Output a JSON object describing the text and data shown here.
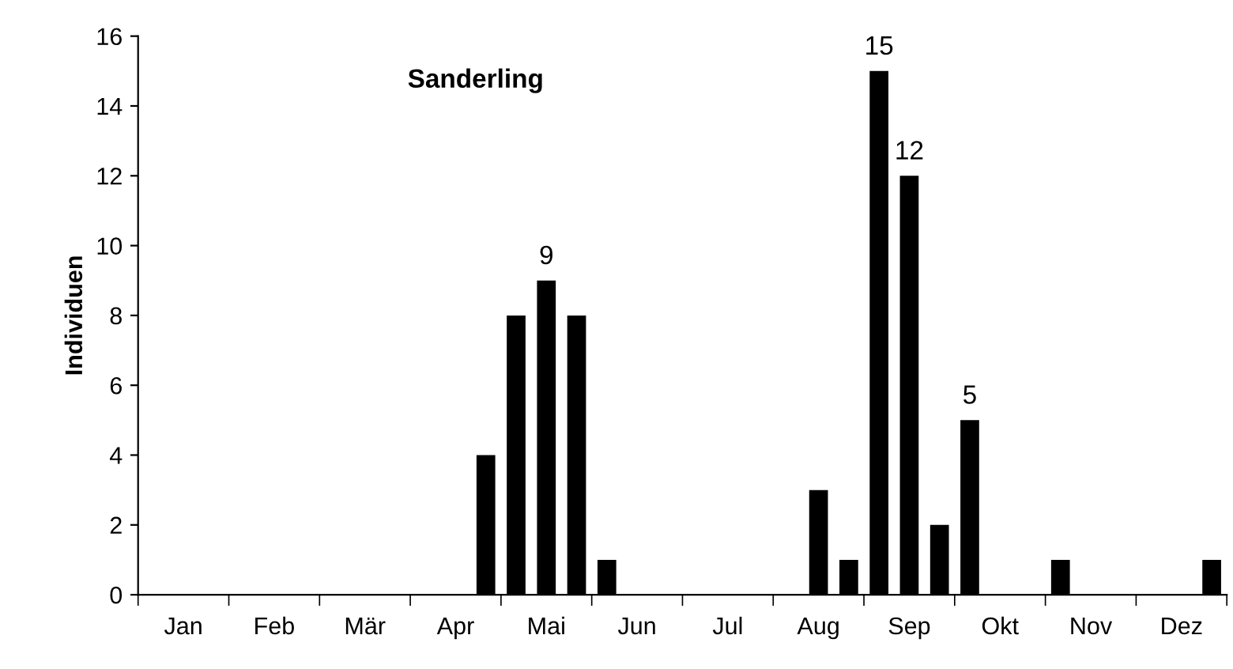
{
  "chart_data": {
    "type": "bar",
    "title": "Sanderling",
    "ylabel": "Individuen",
    "categories": [
      null,
      "Jan",
      null,
      null,
      "Feb",
      null,
      null,
      "Mär",
      null,
      null,
      "Apr",
      null,
      null,
      "Mai",
      null,
      null,
      "Jun",
      null,
      null,
      "Jul",
      null,
      null,
      "Aug",
      null,
      null,
      "Sep",
      null,
      null,
      "Okt",
      null,
      null,
      "Nov",
      null,
      null,
      "Dez",
      null
    ],
    "values": [
      0,
      0,
      0,
      0,
      0,
      0,
      0,
      0,
      0,
      0,
      0,
      4,
      8,
      9,
      8,
      1,
      0,
      0,
      0,
      0,
      0,
      0,
      3,
      1,
      15,
      12,
      2,
      5,
      0,
      0,
      1,
      0,
      0,
      0,
      0,
      1
    ],
    "value_labels": [
      null,
      null,
      null,
      null,
      null,
      null,
      null,
      null,
      null,
      null,
      null,
      null,
      null,
      "9",
      null,
      null,
      null,
      null,
      null,
      null,
      null,
      null,
      null,
      null,
      "15",
      "12",
      null,
      "5",
      null,
      null,
      null,
      null,
      null,
      null,
      null,
      null
    ],
    "color": "#000000",
    "ylim": [
      0,
      16
    ],
    "yticks": [
      0,
      2,
      4,
      6,
      8,
      10,
      12,
      14,
      16
    ],
    "grid": false,
    "legend": false
  }
}
